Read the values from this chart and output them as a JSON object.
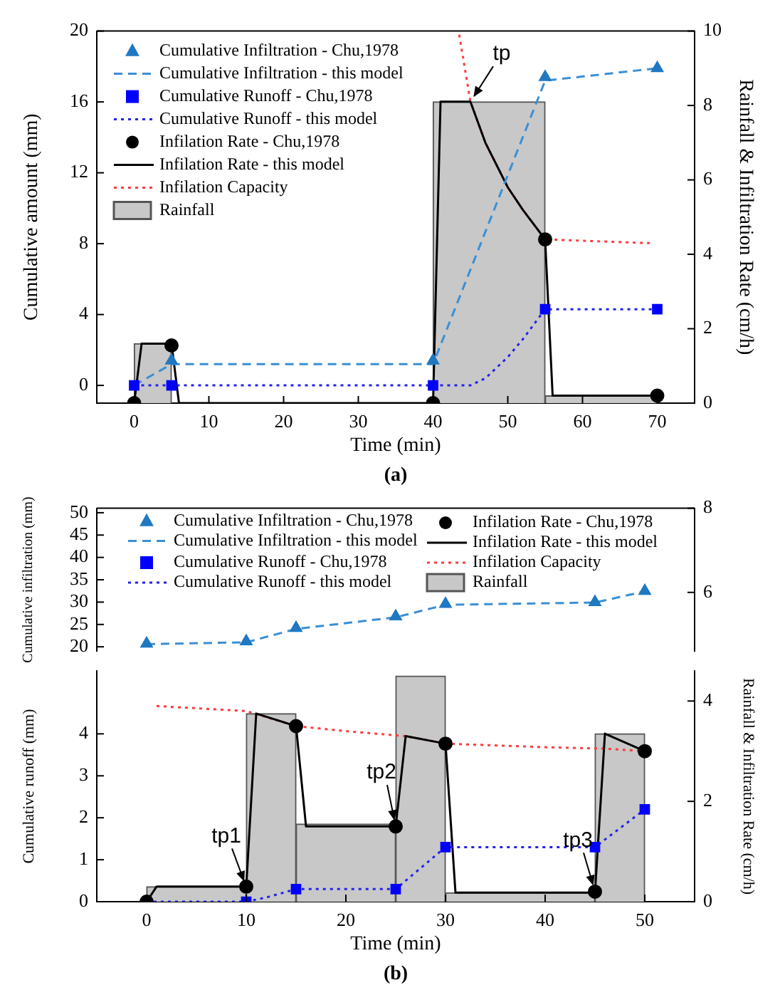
{
  "chart_data": [
    {
      "type": "line",
      "xlabel": "Time (min)",
      "ylabel": "Cumulative amount (mm)",
      "y2label": "Rainfall & Infiltration Rate (cm/h)",
      "xlim": [
        -5,
        75
      ],
      "xticks": [
        0,
        10,
        20,
        30,
        40,
        50,
        60,
        70
      ],
      "ylim": [
        -1,
        20
      ],
      "yticks": [
        0,
        4,
        8,
        12,
        16,
        20
      ],
      "y2lim": [
        0,
        10
      ],
      "y2ticks": [
        0,
        2,
        4,
        6,
        8,
        10
      ],
      "legend": "top left",
      "annotations": [
        {
          "text": "tp",
          "x": 45,
          "y": 16
        },
        "(a)"
      ],
      "series": [
        {
          "name": "Cumulative Infiltration - Chu,1978",
          "type": "scatter",
          "marker": "triangle",
          "color": "#1f78c1",
          "x": [
            5,
            40,
            55,
            70
          ],
          "values": [
            1.4,
            1.4,
            17.4,
            17.9
          ]
        },
        {
          "name": "Cumulative Infiltration - this model",
          "type": "line",
          "line_style": "dashed",
          "color": "#3a8fd4",
          "x": [
            0,
            5,
            40,
            55,
            70
          ],
          "values": [
            0,
            1.2,
            1.2,
            17.2,
            17.9
          ]
        },
        {
          "name": "Cumulative Runoff - Chu,1978",
          "type": "scatter",
          "marker": "square",
          "color": "#0000ff",
          "x": [
            0,
            5,
            40,
            55,
            70
          ],
          "values": [
            0,
            0,
            0,
            4.3,
            4.3
          ]
        },
        {
          "name": "Cumulative Runoff - this model",
          "type": "line",
          "line_style": "dotted",
          "color": "#2222ee",
          "x": [
            0,
            45,
            47,
            50,
            52,
            55,
            70
          ],
          "values": [
            0,
            0,
            0.4,
            1.6,
            2.6,
            4.3,
            4.3
          ]
        },
        {
          "name": "Infilation Rate - Chu,1978",
          "type": "scatter",
          "marker": "circle",
          "axis": "y2",
          "color": "#000000",
          "x": [
            0,
            5,
            40,
            55,
            70
          ],
          "values": [
            0,
            1.55,
            0,
            4.4,
            0.2
          ]
        },
        {
          "name": "Infilation Rate - this model",
          "type": "line",
          "line_style": "solid",
          "axis": "y2",
          "color": "#000000",
          "x": [
            0,
            1,
            5,
            6,
            40,
            41,
            45,
            47,
            50,
            52,
            55,
            56,
            70
          ],
          "values": [
            0,
            1.6,
            1.6,
            0,
            0,
            8.1,
            8.1,
            7.0,
            5.8,
            5.2,
            4.4,
            0.2,
            0.2
          ]
        },
        {
          "name": "Infilation Capacity",
          "type": "line",
          "line_style": "dotted",
          "axis": "y2",
          "color": "#ff3b3b",
          "x": [
            43.5,
            45,
            47,
            50,
            52,
            55,
            69
          ],
          "values": [
            9.9,
            8.1,
            7.0,
            5.8,
            5.2,
            4.4,
            4.3
          ]
        },
        {
          "name": "Rainfall",
          "type": "histogram",
          "axis": "y2",
          "color": "#c8c8c8",
          "bins": [
            0,
            5,
            40,
            55,
            70
          ],
          "values": [
            1.6,
            null,
            8.1,
            0.2
          ]
        }
      ]
    },
    {
      "type": "line",
      "ylabel": "Cumulative infiltration (mm)",
      "xlim": [
        -5,
        55
      ],
      "tick_labels": "y",
      "ylim": [
        19,
        51
      ],
      "yticks": [
        20,
        25,
        30,
        35,
        40,
        45,
        50
      ],
      "y2lim": [
        4.6,
        8
      ],
      "y2ticks": [
        6,
        8
      ],
      "legend": "top",
      "series": [
        {
          "name": "Cumulative Infiltration - Chu,1978",
          "type": "scatter",
          "marker": "triangle",
          "color": "#1f78c1",
          "x": [
            0,
            10,
            15,
            25,
            30,
            45,
            50
          ],
          "values": [
            20.7,
            21.2,
            24.2,
            26.8,
            29.6,
            30.0,
            32.5
          ]
        },
        {
          "name": "Cumulative Infiltration - this model",
          "type": "line",
          "line_style": "dashed",
          "color": "#3a8fd4",
          "x": [
            0,
            10,
            15,
            25,
            30,
            45,
            50
          ],
          "values": [
            20.6,
            21.0,
            24.0,
            26.6,
            29.4,
            29.9,
            32.4
          ]
        }
      ]
    },
    {
      "type": "line",
      "xlabel": "Time (min)",
      "ylabel": "Cumulative runoff (mm)",
      "y2label": "Rainfall & Infiltration Rate (cm/h)",
      "xlim": [
        -5,
        55
      ],
      "xticks": [
        0,
        10,
        20,
        30,
        40,
        50
      ],
      "ylim": [
        0,
        5.5
      ],
      "yticks": [
        0,
        1,
        2,
        3,
        4
      ],
      "y2lim": [
        0,
        4.6
      ],
      "y2ticks": [
        0,
        2,
        4
      ],
      "legend": "top",
      "annotations": [
        {
          "text": "tp1",
          "x": 10,
          "y": 0.35
        },
        {
          "text": "tp2",
          "x": 25,
          "y": 1.8
        },
        {
          "text": "tp3",
          "x": 45,
          "y": 0.25
        },
        "(b)"
      ],
      "series": [
        {
          "name": "Cumulative Runoff - Chu,1978",
          "type": "scatter",
          "marker": "square",
          "color": "#0000ff",
          "x": [
            10,
            15,
            25,
            30,
            45,
            50
          ],
          "values": [
            0,
            0.3,
            0.3,
            1.3,
            1.3,
            2.2
          ]
        },
        {
          "name": "Cumulative Runoff - this model",
          "type": "line",
          "line_style": "dotted",
          "color": "#2222ee",
          "x": [
            0,
            10,
            12,
            15,
            25,
            30,
            45,
            50
          ],
          "values": [
            0,
            0,
            0.1,
            0.3,
            0.3,
            1.3,
            1.3,
            2.2
          ]
        },
        {
          "name": "Infilation Rate - Chu,1978",
          "type": "scatter",
          "marker": "circle",
          "axis": "y2",
          "color": "#000000",
          "x": [
            0,
            10,
            15,
            25,
            30,
            45,
            50
          ],
          "values": [
            0,
            0.3,
            3.5,
            1.5,
            3.15,
            0.2,
            3.0
          ]
        },
        {
          "name": "Infilation Rate - this model",
          "type": "line",
          "line_style": "solid",
          "axis": "y2",
          "color": "#000000",
          "x": [
            0,
            1,
            10,
            11,
            15,
            16,
            25,
            26,
            30,
            31,
            45,
            46,
            50
          ],
          "values": [
            0,
            0.3,
            0.3,
            3.75,
            3.5,
            1.5,
            1.5,
            3.3,
            3.15,
            0.18,
            0.18,
            3.35,
            3.0
          ]
        },
        {
          "name": "Infilation Capacity",
          "type": "line",
          "line_style": "dotted",
          "axis": "y2",
          "color": "#ff3b3b",
          "x": [
            1,
            10,
            15,
            20,
            26,
            30,
            40,
            46,
            50
          ],
          "values": [
            3.9,
            3.8,
            3.5,
            3.4,
            3.3,
            3.15,
            3.08,
            3.05,
            3.0
          ]
        },
        {
          "name": "Rainfall",
          "type": "histogram",
          "axis": "y2",
          "color": "#c8c8c8",
          "bins": [
            0,
            10,
            15,
            25,
            30,
            45,
            50
          ],
          "values": [
            0.3,
            3.75,
            1.55,
            4.5,
            0.18,
            3.35
          ]
        }
      ]
    }
  ]
}
